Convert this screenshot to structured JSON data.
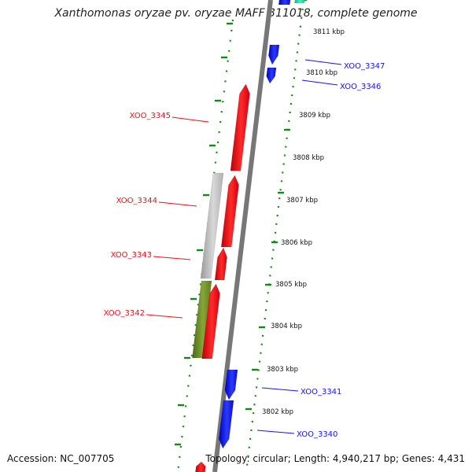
{
  "title": "Xanthomonas oryzae pv. oryzae MAFF 311018, complete genome",
  "footer": {
    "accession": "Accession: NC_007705",
    "topology": "Topology: circular; Length: 4,940,217 bp; Genes: 4,431"
  },
  "colors": {
    "forward_gene": "#e8121a",
    "reverse_gene": "#1414ee",
    "cds_grey": "#c0c0c0",
    "cds_olive": "#6e8a26",
    "teal_feature": "#1fe3b0",
    "dna_backbone": "#7f7f7f",
    "gc_skew": "#138a13",
    "forward_label": "#e8121a",
    "reverse_label": "#1414ee"
  },
  "kbp_ticks": [
    "3811 kbp",
    "3810 kbp",
    "3809 kbp",
    "3808 kbp",
    "3807 kbp",
    "3806 kbp",
    "3805 kbp",
    "3804 kbp",
    "3803 kbp",
    "3802 kbp"
  ],
  "genes": [
    {
      "label": "XOO_3347",
      "strand": "reverse"
    },
    {
      "label": "XOO_3346",
      "strand": "reverse"
    },
    {
      "label": "XOO_3345",
      "strand": "forward"
    },
    {
      "label": "XOO_3344",
      "strand": "forward"
    },
    {
      "label": "XOO_3343",
      "strand": "forward"
    },
    {
      "label": "XOO_3342",
      "strand": "forward"
    },
    {
      "label": "XOO_3341",
      "strand": "reverse"
    },
    {
      "label": "XOO_3340",
      "strand": "reverse"
    }
  ]
}
